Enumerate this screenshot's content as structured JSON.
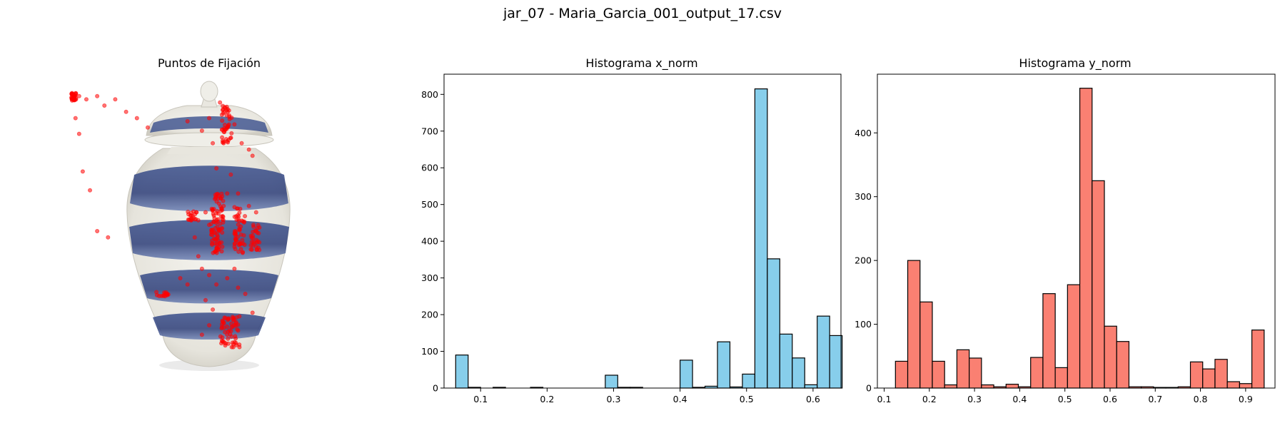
{
  "figure": {
    "suptitle": "jar_07 - Maria_Garcia_001_output_17.csv"
  },
  "chart_data": [
    {
      "type": "scatter",
      "title": "Puntos de Fijación",
      "axes_visible": false,
      "background_image": "porcelain ginger jar with lid, white glaze with blue drip bands",
      "marker_color": "#ff0000",
      "marker_alpha": 0.55,
      "clusters": [
        {
          "name": "upper-left cluster",
          "x": [
            0.118,
            0.132
          ],
          "y": [
            0.915,
            0.94
          ],
          "n": 40
        },
        {
          "name": "lid center",
          "x": [
            0.535,
            0.565
          ],
          "y": [
            0.78,
            0.9
          ],
          "n": 45
        },
        {
          "name": "body center",
          "x": [
            0.505,
            0.54
          ],
          "y": [
            0.43,
            0.62
          ],
          "n": 90
        },
        {
          "name": "body right",
          "x": [
            0.57,
            0.6
          ],
          "y": [
            0.42,
            0.58
          ],
          "n": 50
        },
        {
          "name": "body right-far",
          "x": [
            0.615,
            0.64
          ],
          "y": [
            0.44,
            0.52
          ],
          "n": 30
        },
        {
          "name": "body left",
          "x": [
            0.44,
            0.47
          ],
          "y": [
            0.53,
            0.57
          ],
          "n": 20
        },
        {
          "name": "lower center",
          "x": [
            0.53,
            0.585
          ],
          "y": [
            0.13,
            0.23
          ],
          "n": 60
        },
        {
          "name": "lower left",
          "x": [
            0.35,
            0.39
          ],
          "y": [
            0.29,
            0.31
          ],
          "n": 15
        }
      ],
      "scattered_points": [
        [
          0.14,
          0.93
        ],
        [
          0.16,
          0.92
        ],
        [
          0.19,
          0.93
        ],
        [
          0.21,
          0.9
        ],
        [
          0.24,
          0.92
        ],
        [
          0.27,
          0.88
        ],
        [
          0.3,
          0.86
        ],
        [
          0.13,
          0.86
        ],
        [
          0.14,
          0.81
        ],
        [
          0.15,
          0.69
        ],
        [
          0.17,
          0.63
        ],
        [
          0.19,
          0.5
        ],
        [
          0.22,
          0.48
        ],
        [
          0.33,
          0.83
        ],
        [
          0.44,
          0.85
        ],
        [
          0.48,
          0.82
        ],
        [
          0.5,
          0.86
        ],
        [
          0.51,
          0.78
        ],
        [
          0.53,
          0.91
        ],
        [
          0.57,
          0.84
        ],
        [
          0.59,
          0.78
        ],
        [
          0.61,
          0.76
        ],
        [
          0.62,
          0.74
        ],
        [
          0.56,
          0.68
        ],
        [
          0.55,
          0.62
        ],
        [
          0.49,
          0.56
        ],
        [
          0.5,
          0.52
        ],
        [
          0.46,
          0.48
        ],
        [
          0.47,
          0.42
        ],
        [
          0.48,
          0.38
        ],
        [
          0.5,
          0.36
        ],
        [
          0.52,
          0.33
        ],
        [
          0.55,
          0.35
        ],
        [
          0.57,
          0.38
        ],
        [
          0.58,
          0.32
        ],
        [
          0.6,
          0.3
        ],
        [
          0.62,
          0.24
        ],
        [
          0.49,
          0.28
        ],
        [
          0.51,
          0.25
        ],
        [
          0.5,
          0.2
        ],
        [
          0.48,
          0.17
        ],
        [
          0.44,
          0.33
        ],
        [
          0.42,
          0.35
        ],
        [
          0.57,
          0.45
        ],
        [
          0.61,
          0.58
        ],
        [
          0.63,
          0.56
        ],
        [
          0.58,
          0.62
        ],
        [
          0.52,
          0.7
        ],
        [
          0.54,
          0.58
        ]
      ]
    },
    {
      "type": "bar",
      "title": "Histograma x_norm",
      "xlabel": "",
      "ylabel": "",
      "xlim": [
        0.045,
        0.642
      ],
      "ylim": [
        0,
        855
      ],
      "xticks": [
        0.1,
        0.2,
        0.3,
        0.4,
        0.5,
        0.6
      ],
      "xtick_labels": [
        "0.1",
        "0.2",
        "0.3",
        "0.4",
        "0.5",
        "0.6"
      ],
      "yticks": [
        0,
        100,
        200,
        300,
        400,
        500,
        600,
        700,
        800
      ],
      "ytick_labels": [
        "0",
        "100",
        "200",
        "300",
        "400",
        "500",
        "600",
        "700",
        "800"
      ],
      "bar_color": "#87ceeb",
      "edge_color": "#000000",
      "bin_start": 0.0625,
      "bin_width": 0.01875,
      "values": [
        90,
        2,
        0,
        2,
        0,
        0,
        2,
        0,
        0,
        0,
        0,
        0,
        35,
        2,
        2,
        0,
        0,
        0,
        76,
        2,
        5,
        126,
        3,
        38,
        815,
        352,
        147,
        82,
        9,
        196,
        143
      ]
    },
    {
      "type": "bar",
      "title": "Histograma y_norm",
      "xlabel": "",
      "ylabel": "",
      "xlim": [
        0.085,
        0.965
      ],
      "ylim": [
        0,
        492
      ],
      "xticks": [
        0.1,
        0.2,
        0.3,
        0.4,
        0.5,
        0.6,
        0.7,
        0.8,
        0.9
      ],
      "xtick_labels": [
        "0.1",
        "0.2",
        "0.3",
        "0.4",
        "0.5",
        "0.6",
        "0.7",
        "0.8",
        "0.9"
      ],
      "yticks": [
        0,
        100,
        200,
        300,
        400
      ],
      "ytick_labels": [
        "0",
        "100",
        "200",
        "300",
        "400"
      ],
      "bar_color": "#fa8072",
      "edge_color": "#000000",
      "bin_start": 0.125,
      "bin_width": 0.0272,
      "values": [
        42,
        200,
        135,
        42,
        5,
        60,
        47,
        5,
        2,
        6,
        2,
        48,
        148,
        32,
        162,
        470,
        325,
        97,
        73,
        2,
        2,
        1,
        1,
        2,
        41,
        30,
        45,
        10,
        7,
        91
      ]
    }
  ]
}
